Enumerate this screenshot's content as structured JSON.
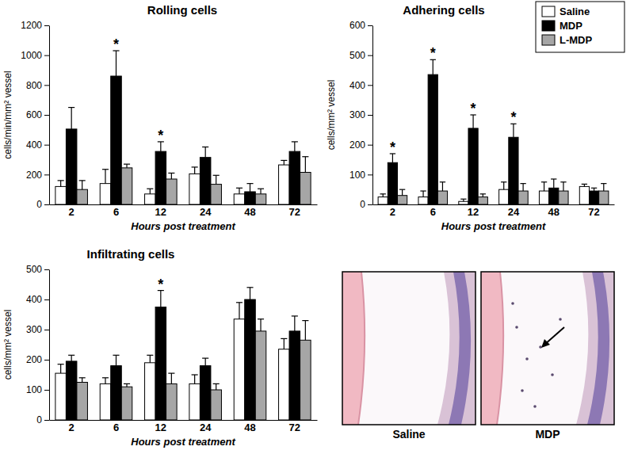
{
  "chart_data": [
    {
      "type": "bar",
      "title": "Rolling cells",
      "x_label": "Hours post treatment",
      "y_label": "cells/min/mm² vessel",
      "categories": [
        "2",
        "6",
        "12",
        "24",
        "48",
        "72"
      ],
      "series": [
        {
          "name": "Saline",
          "color": "#ffffff",
          "values": [
            120,
            140,
            70,
            205,
            70,
            265
          ],
          "errors": [
            40,
            95,
            35,
            45,
            40,
            30
          ]
        },
        {
          "name": "MDP",
          "color": "#000000",
          "values": [
            505,
            860,
            355,
            315,
            85,
            355
          ],
          "errors": [
            145,
            170,
            65,
            70,
            55,
            65
          ]
        },
        {
          "name": "L-MDP",
          "color": "#a6a6a6",
          "values": [
            100,
            245,
            170,
            135,
            70,
            215
          ],
          "errors": [
            60,
            25,
            40,
            60,
            35,
            105
          ]
        }
      ],
      "annotations": [
        {
          "x": "6",
          "series": "MDP",
          "text": "*"
        },
        {
          "x": "12",
          "series": "MDP",
          "text": "*"
        }
      ],
      "ylim": [
        0,
        1200
      ],
      "yticks": [
        0,
        200,
        400,
        600,
        800,
        1000,
        1200
      ],
      "grid": false
    },
    {
      "type": "bar",
      "title": "Adhering cells",
      "x_label": "Hours post treatment",
      "y_label": "cells/mm² vessel",
      "categories": [
        "2",
        "6",
        "12",
        "24",
        "48",
        "72"
      ],
      "series": [
        {
          "name": "Saline",
          "color": "#ffffff",
          "values": [
            25,
            25,
            10,
            50,
            45,
            60
          ],
          "errors": [
            10,
            20,
            8,
            25,
            30,
            8
          ]
        },
        {
          "name": "MDP",
          "color": "#000000",
          "values": [
            140,
            435,
            255,
            225,
            55,
            45
          ],
          "errors": [
            30,
            50,
            45,
            45,
            30,
            10
          ]
        },
        {
          "name": "L-MDP",
          "color": "#a6a6a6",
          "values": [
            30,
            45,
            25,
            45,
            45,
            45
          ],
          "errors": [
            20,
            30,
            10,
            25,
            30,
            25
          ]
        }
      ],
      "annotations": [
        {
          "x": "2",
          "series": "MDP",
          "text": "*"
        },
        {
          "x": "6",
          "series": "MDP",
          "text": "*"
        },
        {
          "x": "12",
          "series": "MDP",
          "text": "*"
        },
        {
          "x": "24",
          "series": "MDP",
          "text": "*"
        }
      ],
      "ylim": [
        0,
        600
      ],
      "yticks": [
        0,
        100,
        200,
        300,
        400,
        500,
        600
      ],
      "grid": false,
      "legend": "top-right"
    },
    {
      "type": "bar",
      "title": "Infiltrating cells",
      "x_label": "Hours post treatment",
      "y_label": "cells/mm² vessel",
      "categories": [
        "2",
        "6",
        "12",
        "24",
        "48",
        "72"
      ],
      "series": [
        {
          "name": "Saline",
          "color": "#ffffff",
          "values": [
            155,
            120,
            190,
            120,
            335,
            235
          ],
          "errors": [
            30,
            20,
            25,
            30,
            55,
            35
          ]
        },
        {
          "name": "MDP",
          "color": "#000000",
          "values": [
            195,
            180,
            375,
            180,
            400,
            295
          ],
          "errors": [
            20,
            35,
            55,
            25,
            40,
            50
          ]
        },
        {
          "name": "L-MDP",
          "color": "#a6a6a6",
          "values": [
            125,
            110,
            120,
            100,
            295,
            265
          ],
          "errors": [
            15,
            10,
            35,
            20,
            40,
            65
          ]
        }
      ],
      "annotations": [
        {
          "x": "12",
          "series": "MDP",
          "text": "*"
        }
      ],
      "ylim": [
        0,
        500
      ],
      "yticks": [
        0,
        100,
        200,
        300,
        400,
        500
      ],
      "grid": false
    }
  ],
  "images": [
    {
      "caption": "Saline"
    },
    {
      "caption": "MDP"
    }
  ]
}
